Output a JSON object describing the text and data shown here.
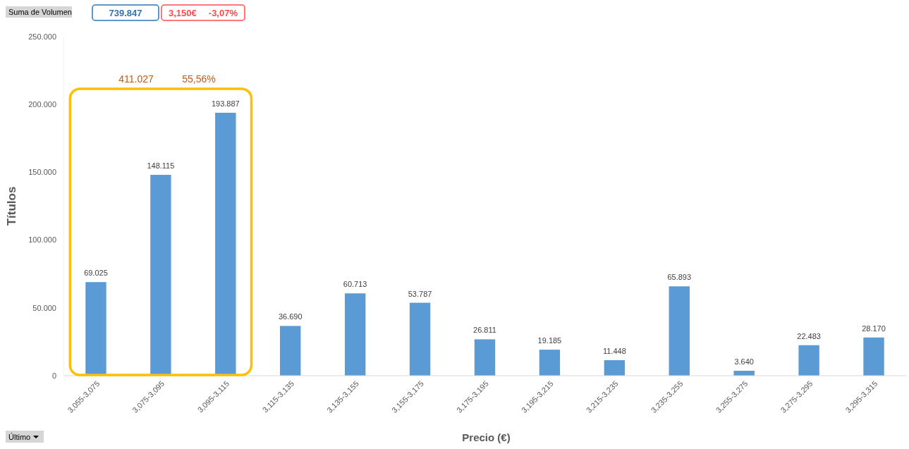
{
  "chart_data": {
    "type": "bar",
    "xlabel": "Precio (€)",
    "ylabel": "Títulos",
    "categories": [
      "3,055-3,075",
      "3,075-3,095",
      "3,095-3,115",
      "3,115-3,135",
      "3,135-3,155",
      "3,155-3,175",
      "3,175-3,195",
      "3,195-3,215",
      "3,215-3,235",
      "3,235-3,255",
      "3,255-3,275",
      "3,275-3,295",
      "3,295-3,315"
    ],
    "values": [
      69025,
      148115,
      193887,
      36690,
      60713,
      53787,
      26811,
      19185,
      11448,
      65893,
      3640,
      22483,
      28170
    ],
    "value_labels": [
      "69.025",
      "148.115",
      "193.887",
      "36.690",
      "60.713",
      "53.787",
      "26.811",
      "19.185",
      "11.448",
      "65.893",
      "3.640",
      "22.483",
      "28.170"
    ],
    "color": "#5b9bd5",
    "ylim": [
      0,
      250000
    ],
    "yticks": [
      0,
      {
        "value": 50000,
        "label": "50.000"
      },
      {
        "value": 100000,
        "label": "100.000"
      },
      {
        "value": 150000,
        "label": "150.000"
      },
      {
        "value": 200000,
        "label": "200.000"
      },
      {
        "value": 250000,
        "label": "250.000"
      }
    ],
    "grid": false,
    "annotations": [
      "Suma de Volumen",
      "739.847",
      "3,150€",
      "-3,07%",
      "Último",
      "411.027",
      "55,56%"
    ]
  }
}
